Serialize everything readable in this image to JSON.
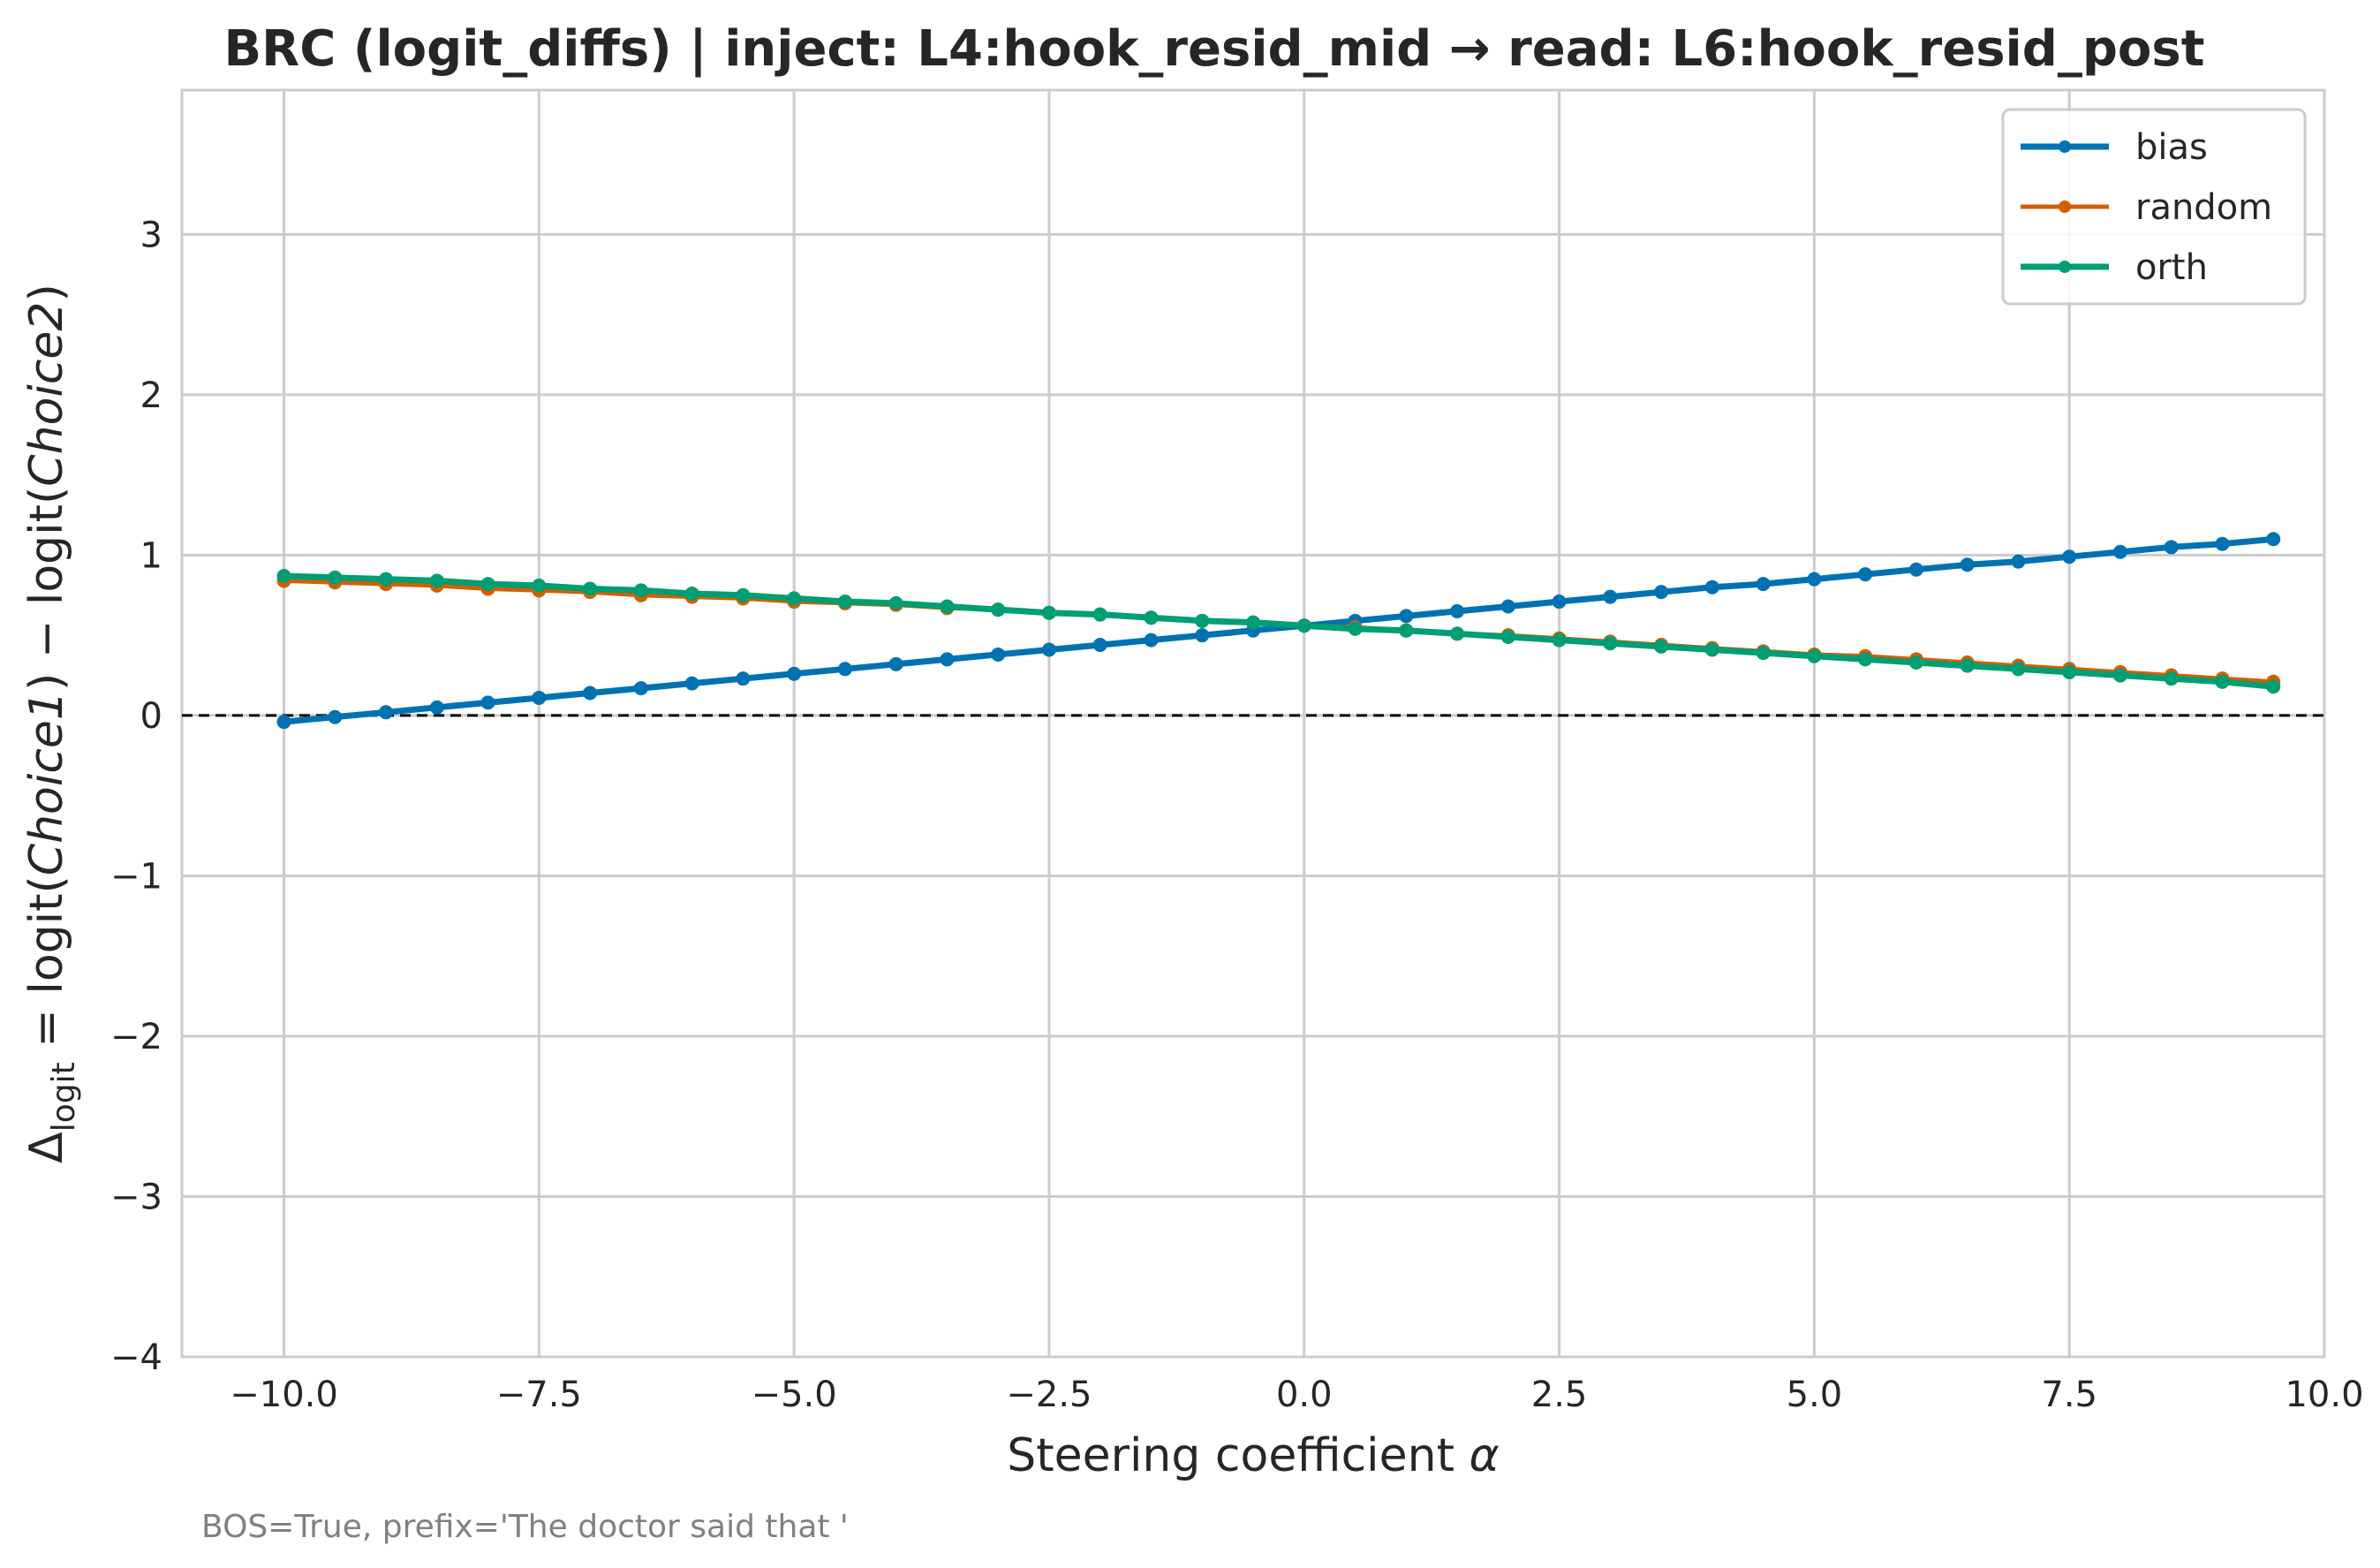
{
  "chart_data": {
    "type": "line",
    "title": "BRC (logit_diffs) | inject: L4:hook_resid_mid → read: L6:hook_resid_post",
    "xlabel": "Steering coefficient α",
    "ylabel": {
      "prefix": "Δ",
      "subscript": "logit",
      "middle": " = logit(",
      "choice1": "Choice1",
      "mid2": ") − logit(",
      "choice2": "Choice2",
      "end": ")"
    },
    "xlim": [
      -11.0,
      10.0
    ],
    "ylim": [
      -4.0,
      3.9
    ],
    "xticks": [
      -10.0,
      -7.5,
      -5.0,
      -2.5,
      0.0,
      2.5,
      5.0,
      7.5,
      10.0
    ],
    "xtick_labels": [
      "−10.0",
      "−7.5",
      "−5.0",
      "−2.5",
      "0.0",
      "2.5",
      "5.0",
      "7.5",
      "10.0"
    ],
    "yticks": [
      -4,
      -3,
      -2,
      -1,
      0,
      1,
      2,
      3
    ],
    "ytick_labels": [
      "−4",
      "−3",
      "−2",
      "−1",
      "0",
      "1",
      "2",
      "3"
    ],
    "grid": true,
    "legend_position": "top-right",
    "reference_line": {
      "y": 0,
      "style": "dashed",
      "color": "#000000"
    },
    "x": [
      -10.0,
      -9.5,
      -9.0,
      -8.5,
      -8.0,
      -7.5,
      -7.0,
      -6.5,
      -6.0,
      -5.5,
      -5.0,
      -4.5,
      -4.0,
      -3.5,
      -3.0,
      -2.5,
      -2.0,
      -1.5,
      -1.0,
      -0.5,
      0.0,
      0.5,
      1.0,
      1.5,
      2.0,
      2.5,
      3.0,
      3.5,
      4.0,
      4.5,
      5.0,
      5.5,
      6.0,
      6.5,
      7.0,
      7.5,
      8.0,
      8.5,
      9.0,
      9.5
    ],
    "series": [
      {
        "name": "bias",
        "color": "#0072B2",
        "linewidth": 7,
        "values": [
          -0.04,
          -0.01,
          0.02,
          0.05,
          0.08,
          0.11,
          0.14,
          0.17,
          0.2,
          0.23,
          0.26,
          0.29,
          0.32,
          0.35,
          0.38,
          0.41,
          0.44,
          0.47,
          0.5,
          0.53,
          0.56,
          0.59,
          0.62,
          0.65,
          0.68,
          0.71,
          0.74,
          0.77,
          0.8,
          0.82,
          0.85,
          0.88,
          0.91,
          0.94,
          0.96,
          0.99,
          1.02,
          1.05,
          1.07,
          1.1
        ]
      },
      {
        "name": "random",
        "color": "#D55E00",
        "linewidth": 5,
        "values": [
          0.84,
          0.83,
          0.82,
          0.81,
          0.79,
          0.78,
          0.77,
          0.75,
          0.74,
          0.73,
          0.71,
          0.7,
          0.69,
          0.67,
          0.66,
          0.64,
          0.63,
          0.61,
          0.59,
          0.58,
          0.56,
          0.55,
          0.53,
          0.51,
          0.5,
          0.48,
          0.46,
          0.44,
          0.42,
          0.4,
          0.38,
          0.37,
          0.35,
          0.33,
          0.31,
          0.29,
          0.27,
          0.25,
          0.23,
          0.21
        ]
      },
      {
        "name": "orth",
        "color": "#009E73",
        "linewidth": 7,
        "values": [
          0.87,
          0.86,
          0.85,
          0.84,
          0.82,
          0.81,
          0.79,
          0.78,
          0.76,
          0.75,
          0.73,
          0.71,
          0.7,
          0.68,
          0.66,
          0.64,
          0.63,
          0.61,
          0.59,
          0.58,
          0.56,
          0.54,
          0.53,
          0.51,
          0.49,
          0.47,
          0.45,
          0.43,
          0.41,
          0.39,
          0.37,
          0.35,
          0.33,
          0.31,
          0.29,
          0.27,
          0.25,
          0.23,
          0.21,
          0.18
        ]
      }
    ]
  },
  "footnote": "BOS=True, prefix='The doctor said that '"
}
